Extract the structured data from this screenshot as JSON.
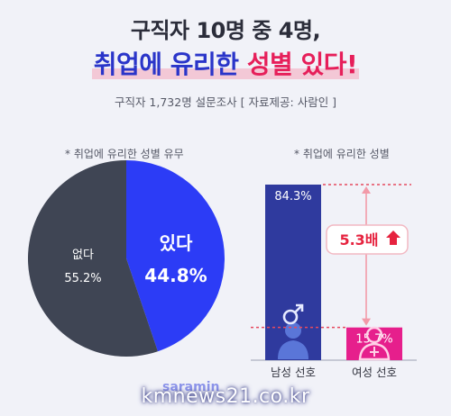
{
  "header": {
    "title_line1": "구직자 10명 중 4명,",
    "title_line2_a": "취업에 유리한 ",
    "title_line2_b": "성별 있다!",
    "subtitle": "구직자 1,732명 설문조사 [ 자료제공: 사람인 ]"
  },
  "chart_data": [
    {
      "type": "pie",
      "caption": "* 취업에 유리한 성별 유무",
      "labels": [
        "있다",
        "없다"
      ],
      "values": [
        44.8,
        55.2
      ],
      "value_labels": [
        "44.8%",
        "55.2%"
      ],
      "colors": [
        "#2c3cf6",
        "#3f4554"
      ]
    },
    {
      "type": "bar",
      "caption": "* 취업에 유리한 성별",
      "categories": [
        "남성 선호",
        "여성 선호"
      ],
      "values": [
        84.3,
        15.7
      ],
      "value_labels": [
        "84.3%",
        "15.7%"
      ],
      "colors": [
        "#2f3a9e",
        "#e61f8c"
      ],
      "annotation": "5.3배",
      "ylim": [
        0,
        100
      ]
    }
  ],
  "footer": {
    "brand": "saramin",
    "watermark": "kmnews21.co.kr"
  }
}
